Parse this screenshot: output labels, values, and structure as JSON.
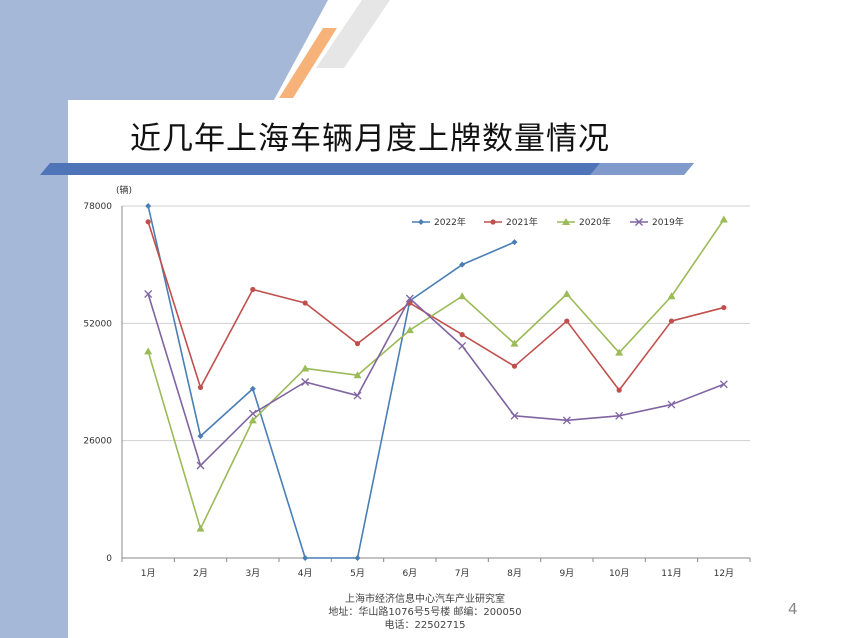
{
  "slide": {
    "title": "近几年上海车辆月度上牌数量情况",
    "footer": {
      "line1": "上海市经济信息中心汽车产业研究室",
      "line2": "地址：华山路1076号5号楼    邮编：200050",
      "line3": "电话：22502715"
    },
    "page_number": "4",
    "colors": {
      "left_band": "#a6b8d8",
      "title_underline": "#4f74b8",
      "accent_orange": "#f7b27a",
      "accent_grey": "#e6e6e6"
    }
  },
  "chart_data": {
    "type": "line",
    "title": "",
    "xlabel": "",
    "ylabel": "(辆)",
    "categories": [
      "1月",
      "2月",
      "3月",
      "4月",
      "5月",
      "6月",
      "7月",
      "8月",
      "9月",
      "10月",
      "11月",
      "12月"
    ],
    "y_ticks": [
      "0",
      "26000",
      "52000",
      "78000"
    ],
    "ylim": [
      0,
      78000
    ],
    "grid": true,
    "legend_position": "top-right",
    "series": [
      {
        "name": "2022年",
        "color": "#4a7eb5",
        "marker": "diamond",
        "values": [
          78000,
          27000,
          37500,
          0,
          0,
          57000,
          65000,
          70000,
          null,
          null,
          null,
          null
        ]
      },
      {
        "name": "2021年",
        "color": "#c0504d",
        "marker": "circle",
        "values": [
          74500,
          37800,
          59500,
          56500,
          47500,
          56500,
          49500,
          42500,
          52500,
          37200,
          52500,
          55500
        ]
      },
      {
        "name": "2020年",
        "color": "#9bbb59",
        "marker": "triangle",
        "values": [
          45800,
          6500,
          30500,
          42000,
          40500,
          50500,
          58000,
          47500,
          58500,
          45500,
          58000,
          75000
        ]
      },
      {
        "name": "2019年",
        "color": "#8064a2",
        "marker": "x",
        "values": [
          58500,
          20500,
          32000,
          39000,
          36000,
          57500,
          47000,
          31500,
          30500,
          31500,
          34000,
          38500
        ]
      }
    ]
  }
}
